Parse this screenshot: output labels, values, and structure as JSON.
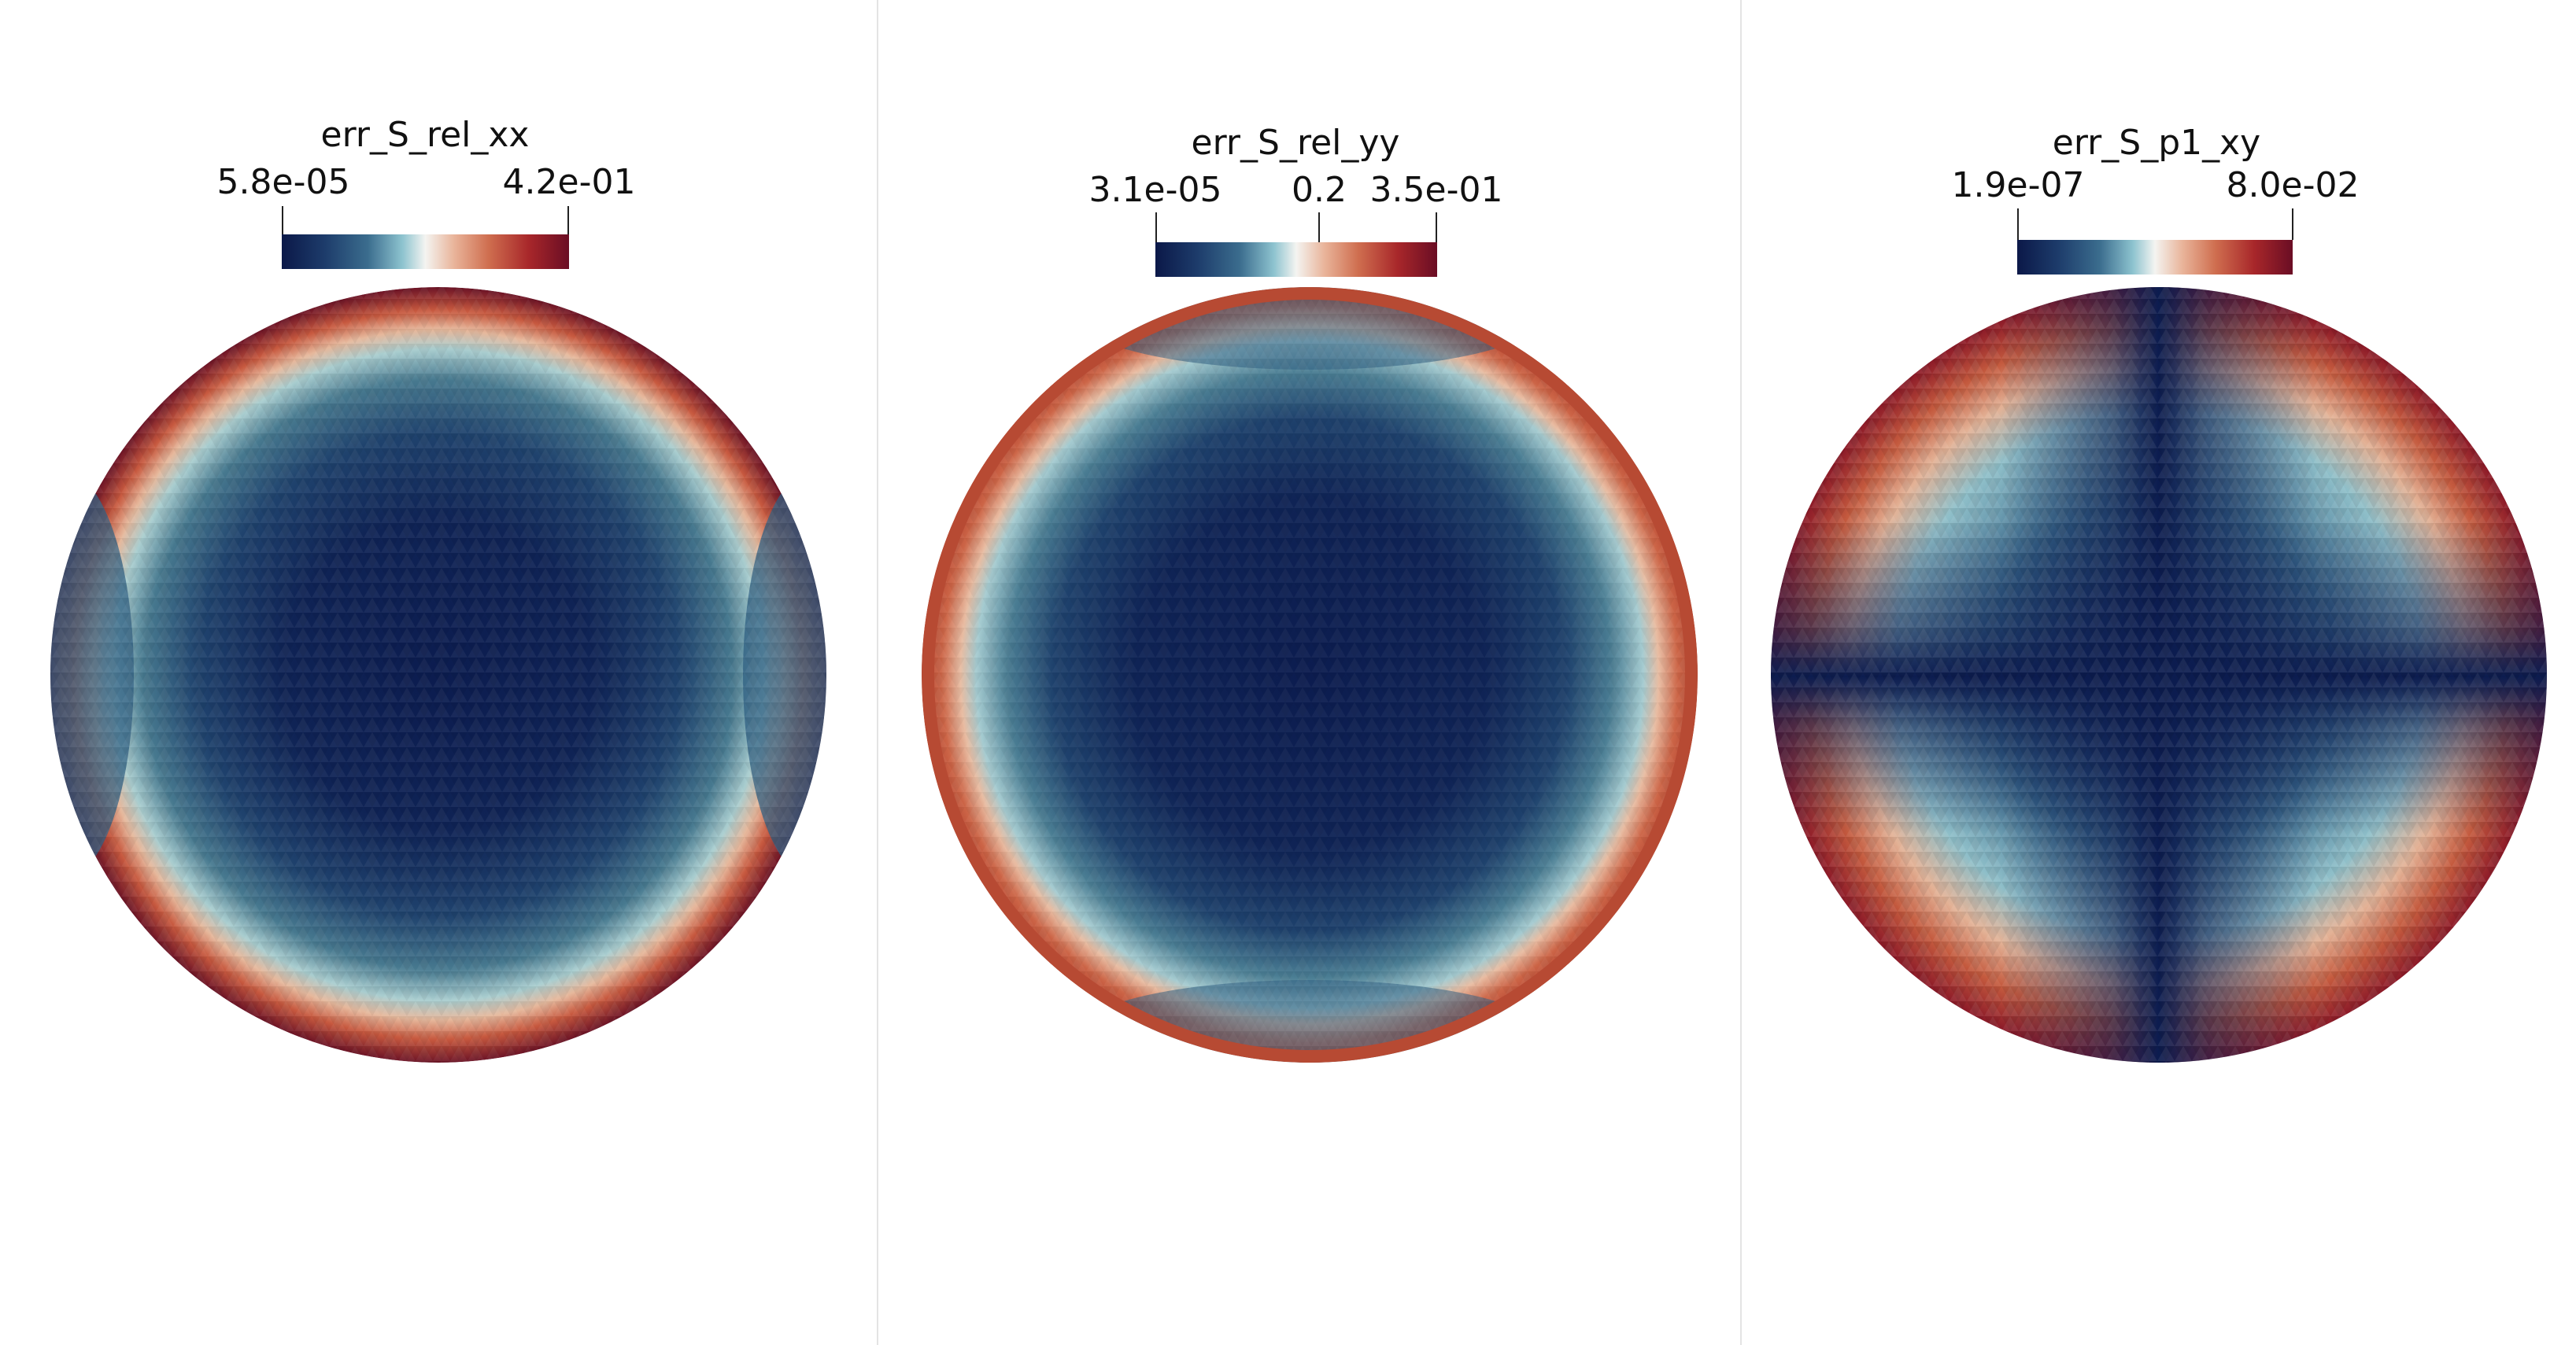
{
  "colormap": {
    "name": "diverging blue-white-red",
    "stops": [
      "#0b1848",
      "#1d3c6b",
      "#3b6d8e",
      "#8dc3cf",
      "#f4f4f1",
      "#e9b49a",
      "#cf6e4f",
      "#a8272a",
      "#6a0d24"
    ]
  },
  "panels": [
    {
      "field": "err_S_rel_xx",
      "range_min_label": "5.8e-05",
      "range_max_label": "4.2e-01",
      "mid_tick_label": "",
      "pattern": "xx"
    },
    {
      "field": "err_S_rel_yy",
      "range_min_label": "3.1e-05",
      "range_max_label": "3.5e-01",
      "mid_tick_label": "0.2",
      "pattern": "yy"
    },
    {
      "field": "err_S_p1_xy",
      "range_min_label": "1.9e-07",
      "range_max_label": "8.0e-02",
      "mid_tick_label": "",
      "pattern": "xy"
    }
  ]
}
